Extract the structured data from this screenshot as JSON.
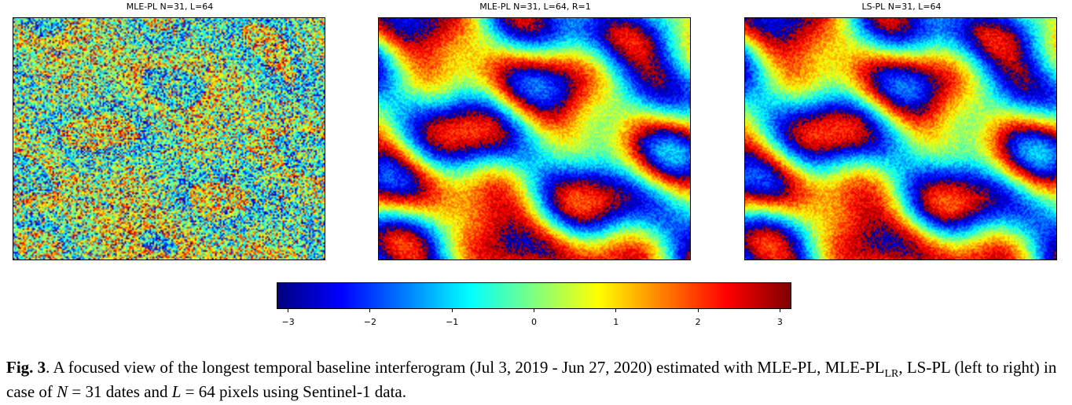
{
  "panels": [
    {
      "title": "MLE-PL N=31, L=64",
      "noise": "high"
    },
    {
      "title": "MLE-PL N=31, L=64, R=1",
      "noise": "low"
    },
    {
      "title": "LS-PL N=31, L=64",
      "noise": "low"
    }
  ],
  "chart_data": {
    "type": "heatmap",
    "colormap": "jet",
    "colorbar": {
      "range": [
        -3.14,
        3.14
      ],
      "ticks": [
        -3,
        -2,
        -1,
        0,
        1,
        2,
        3
      ],
      "tick_labels": [
        "−3",
        "−2",
        "−1",
        "0",
        "1",
        "2",
        "3"
      ]
    }
  },
  "caption": {
    "label": "Fig. 3",
    "text_1": ". A focused view of the longest temporal baseline interferogram (Jul 3, 2019 - Jun 27, 2020) estimated with MLE-PL, MLE-PL",
    "sub": "LR",
    "text_2": ", LS-PL (left to right) in case of ",
    "var_n": "N",
    "text_3": " = 31 dates and ",
    "var_l": "L",
    "text_4": " = 64 pixels using Sentinel-1 data."
  }
}
